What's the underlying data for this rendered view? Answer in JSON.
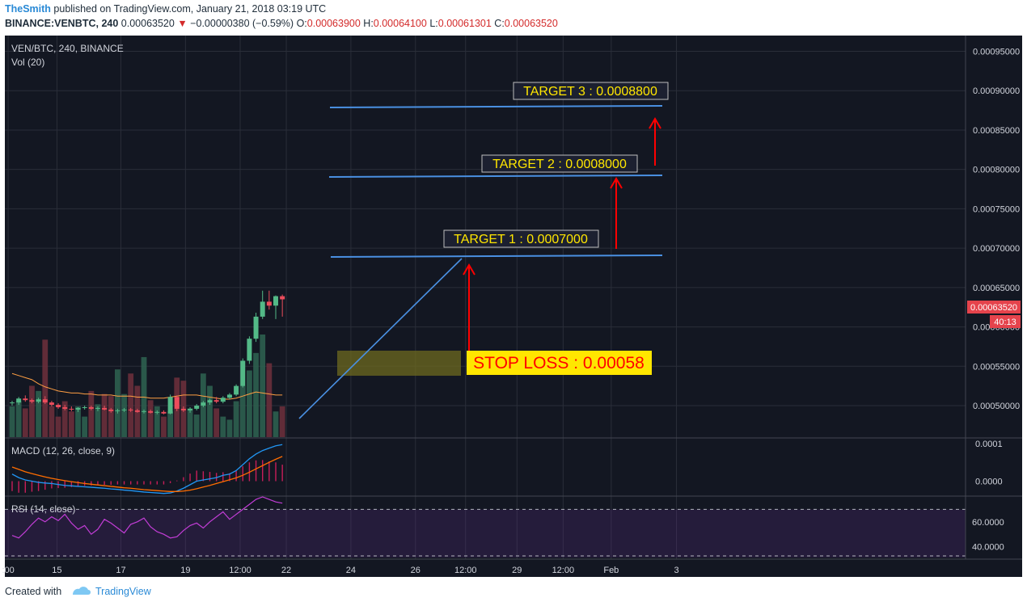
{
  "header": {
    "author": "TheSmith",
    "published_text": " published on TradingView.com, January 21, 2018 03:19 UTC",
    "symbol": "BINANCE:VENBTC, 240",
    "last_price": "0.00063520",
    "change_arrow": "▼",
    "change": "−0.00000380 (−0.59%)",
    "o_label": "O:",
    "o_value": "0.00063900",
    "h_label": "H:",
    "h_value": "0.00064100",
    "l_label": "L:",
    "l_value": "0.00061301",
    "c_label": "C:",
    "c_value": "0.00063520"
  },
  "legend": {
    "pane_title": "VEN/BTC, 240, BINANCE",
    "volume": "Vol (20)",
    "macd": "MACD (12, 26, close, 9)",
    "rsi": "RSI (14, close)"
  },
  "price_badge": {
    "value": "0.00063520",
    "countdown": "40:13"
  },
  "annotations": {
    "target1": "TARGET 1 : 0.0007000",
    "target2": "TARGET 2 : 0.0008000",
    "target3": "TARGET 3 : 0.0008800",
    "stop_loss": "STOP LOSS : 0.00058"
  },
  "footer": {
    "created_with": "Created with",
    "brand": "TradingView"
  },
  "colors": {
    "background": "#131722",
    "grid": "#2a2e39",
    "bull": "#53b987",
    "bear": "#eb4d5c",
    "target_line": "#4a90e2",
    "arrow": "#ff0000",
    "label_text": "#ffe600",
    "stop_bg": "#ffe600",
    "stop_text": "#ff0000",
    "macd_line": "#2196f3",
    "signal_line": "#ff6d00",
    "rsi_line": "#c23dd6"
  },
  "chart_data": {
    "type": "candlestick",
    "price_axis": {
      "ylim": [
        0.00046,
        0.00097
      ],
      "ticks": [
        "0.00050000",
        "0.00055000",
        "0.00060000",
        "0.00065000",
        "0.00070000",
        "0.00075000",
        "0.00080000",
        "0.00085000",
        "0.00090000",
        "0.00095000"
      ],
      "tick_values": [
        0.0005,
        0.00055,
        0.0006,
        0.00065,
        0.0007,
        0.00075,
        0.0008,
        0.00085,
        0.0009,
        0.00095
      ]
    },
    "x_axis": {
      "labels": [
        ":00",
        "15",
        "17",
        "19",
        "12:00",
        "22",
        "24",
        "26",
        "12:00",
        "29",
        "12:00",
        "Feb",
        "3"
      ],
      "label_index": [
        -0.6,
        6.8,
        16.5,
        26.3,
        34.6,
        41.6,
        51.4,
        61.2,
        68.8,
        76.6,
        83.6,
        90.9,
        100.8
      ]
    },
    "candles": [
      [
        0.000503,
        0.000506,
        0.0005,
        0.000504
      ],
      [
        0.000504,
        0.000511,
        0.000501,
        0.000509
      ],
      [
        0.000509,
        0.000513,
        0.000505,
        0.000507
      ],
      [
        0.000507,
        0.000509,
        0.000503,
        0.000505
      ],
      [
        0.000505,
        0.00051,
        0.000503,
        0.000508
      ],
      [
        0.000508,
        0.000512,
        0.000502,
        0.000504
      ],
      [
        0.000504,
        0.000506,
        0.000499,
        0.000501
      ],
      [
        0.000501,
        0.000503,
        0.000496,
        0.000498
      ],
      [
        0.000498,
        0.000501,
        0.000494,
        0.000496
      ],
      [
        0.000496,
        0.000499,
        0.000493,
        0.000495
      ],
      [
        0.000495,
        0.000498,
        0.000492,
        0.000497
      ],
      [
        0.000497,
        0.0005,
        0.000495,
        0.000498
      ],
      [
        0.000498,
        0.0005,
        0.000494,
        0.000496
      ],
      [
        0.000496,
        0.000499,
        0.000493,
        0.000497
      ],
      [
        0.000497,
        0.0005,
        0.000494,
        0.000495
      ],
      [
        0.000495,
        0.000497,
        0.000491,
        0.000493
      ],
      [
        0.000493,
        0.000496,
        0.00049,
        0.000494
      ],
      [
        0.000494,
        0.000497,
        0.000492,
        0.000495
      ],
      [
        0.000495,
        0.000497,
        0.000492,
        0.000494
      ],
      [
        0.000494,
        0.000496,
        0.000491,
        0.000492
      ],
      [
        0.000492,
        0.000495,
        0.00049,
        0.000493
      ],
      [
        0.000493,
        0.000495,
        0.00049,
        0.000491
      ],
      [
        0.000491,
        0.000494,
        0.000489,
        0.000492
      ],
      [
        0.000492,
        0.000494,
        0.000489,
        0.00049
      ],
      [
        0.00049,
        0.000514,
        0.000489,
        0.000511
      ],
      [
        0.000511,
        0.000513,
        0.000493,
        0.000496
      ],
      [
        0.000496,
        0.000499,
        0.000492,
        0.000494
      ],
      [
        0.000494,
        0.000498,
        0.000491,
        0.000496
      ],
      [
        0.000496,
        0.000502,
        0.000494,
        0.0005
      ],
      [
        0.0005,
        0.000506,
        0.000498,
        0.000504
      ],
      [
        0.000504,
        0.000509,
        0.000501,
        0.000507
      ],
      [
        0.000507,
        0.000511,
        0.000503,
        0.000505
      ],
      [
        0.000505,
        0.000512,
        0.000503,
        0.00051
      ],
      [
        0.00051,
        0.000516,
        0.000508,
        0.000514
      ],
      [
        0.000514,
        0.000527,
        0.000512,
        0.000525
      ],
      [
        0.000525,
        0.00056,
        0.000523,
        0.000557
      ],
      [
        0.000557,
        0.000588,
        0.000553,
        0.000585
      ],
      [
        0.000585,
        0.000618,
        0.000581,
        0.000613
      ],
      [
        0.000613,
        0.000646,
        0.00061,
        0.000632
      ],
      [
        0.000632,
        0.000646,
        0.000622,
        0.000627
      ],
      [
        0.000627,
        0.00064,
        0.00061,
        0.000639
      ],
      [
        0.000639,
        0.000641,
        0.000613,
        0.000635
      ]
    ],
    "volume_ma_rel": [
      0.62,
      0.6,
      0.58,
      0.56,
      0.52,
      0.49,
      0.47,
      0.45,
      0.44,
      0.43,
      0.43,
      0.42,
      0.42,
      0.41,
      0.41,
      0.41,
      0.4,
      0.4,
      0.4,
      0.39,
      0.39,
      0.38,
      0.38,
      0.38,
      0.39,
      0.4,
      0.41,
      0.41,
      0.41,
      0.4,
      0.39,
      0.38,
      0.37,
      0.37,
      0.38,
      0.4,
      0.42,
      0.44,
      0.43,
      0.42,
      0.41,
      0.41
    ],
    "volume_rel": [
      0.3,
      0.35,
      0.28,
      0.5,
      0.45,
      0.95,
      0.3,
      0.2,
      0.35,
      0.25,
      0.3,
      0.2,
      0.45,
      0.32,
      0.42,
      0.4,
      0.66,
      0.42,
      0.62,
      0.5,
      0.78,
      0.36,
      0.3,
      0.2,
      0.25,
      0.58,
      0.55,
      0.28,
      0.22,
      0.62,
      0.5,
      0.28,
      0.2,
      0.17,
      0.35,
      0.5,
      0.65,
      0.82,
      1.0,
      0.72,
      0.25,
      0.3
    ],
    "macd": [
      0.3,
      0.15,
      0.05,
      0.0,
      -0.05,
      -0.08,
      -0.1,
      -0.14,
      -0.18,
      -0.2,
      -0.22,
      -0.24,
      -0.26,
      -0.28,
      -0.3,
      -0.33,
      -0.35,
      -0.38,
      -0.4,
      -0.43,
      -0.46,
      -0.48,
      -0.5,
      -0.52,
      -0.5,
      -0.42,
      -0.3,
      -0.15,
      0.0,
      0.05,
      0.1,
      0.15,
      0.25,
      0.3,
      0.45,
      0.7,
      0.95,
      1.15,
      1.3,
      1.4,
      1.5,
      1.55
    ],
    "signal": [
      0.6,
      0.5,
      0.4,
      0.32,
      0.25,
      0.18,
      0.12,
      0.07,
      0.02,
      -0.02,
      -0.06,
      -0.1,
      -0.13,
      -0.16,
      -0.19,
      -0.22,
      -0.25,
      -0.28,
      -0.3,
      -0.33,
      -0.36,
      -0.38,
      -0.4,
      -0.42,
      -0.44,
      -0.44,
      -0.42,
      -0.38,
      -0.32,
      -0.25,
      -0.18,
      -0.1,
      -0.02,
      0.06,
      0.14,
      0.25,
      0.38,
      0.52,
      0.66,
      0.8,
      0.93,
      1.05
    ],
    "macd_axis": {
      "ticks": [
        "0.0001",
        "0.0000"
      ],
      "tick_values": [
        1.6,
        0.0
      ],
      "ylim": [
        -0.6,
        1.8
      ]
    },
    "rsi": [
      49,
      47,
      52,
      58,
      63,
      60,
      64,
      61,
      66,
      59,
      54,
      57,
      50,
      54,
      62,
      59,
      55,
      51,
      58,
      60,
      63,
      56,
      52,
      50,
      47,
      48,
      53,
      57,
      59,
      55,
      60,
      64,
      68,
      62,
      66,
      70,
      74,
      78,
      80,
      78,
      76,
      75
    ],
    "rsi_axis": {
      "ticks": [
        "60.0000",
        "40.0000"
      ],
      "tick_values": [
        60,
        40
      ],
      "ylim": [
        30,
        80
      ],
      "bands": [
        70,
        30
      ]
    }
  }
}
